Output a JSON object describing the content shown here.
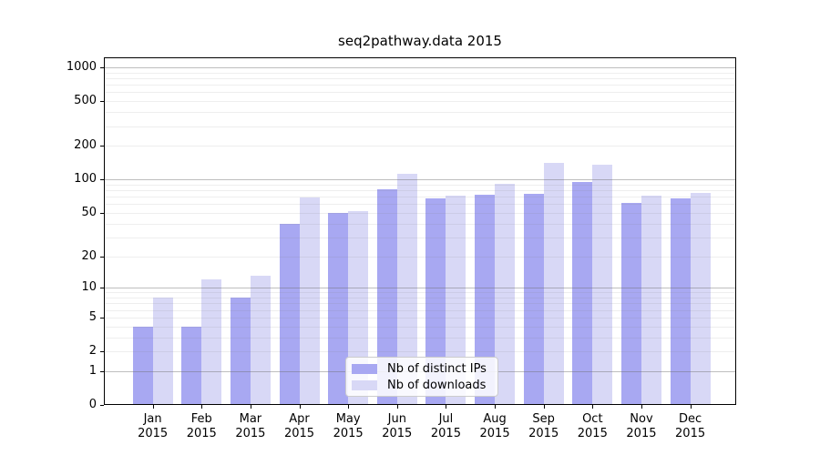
{
  "title": "seq2pathway.data 2015",
  "colors": {
    "ips_bar": "#a8a8f2",
    "downloads_bar": "#d8d8f6",
    "axis": "#000000",
    "grid_major": "#6e6e6e",
    "grid_minor": "#e4e4e4",
    "legend_border": "#cccccc",
    "background": "#ffffff"
  },
  "legend": {
    "entries": [
      {
        "label": "Nb of distinct IPs",
        "color_key": "ips_bar"
      },
      {
        "label": "Nb of downloads",
        "color_key": "downloads_bar"
      }
    ]
  },
  "y_axis": {
    "tick_labels": [
      "1000",
      "500",
      "200",
      "100",
      "50",
      "20",
      "10",
      "5",
      "2",
      "1",
      "0"
    ],
    "tick_values": [
      1000,
      500,
      200,
      100,
      50,
      20,
      10,
      5,
      2,
      1,
      0
    ],
    "scale": "log10(value+1)"
  },
  "x_axis": {
    "months": [
      "Jan",
      "Feb",
      "Mar",
      "Apr",
      "May",
      "Jun",
      "Jul",
      "Aug",
      "Sep",
      "Oct",
      "Nov",
      "Dec"
    ],
    "year": "2015"
  },
  "chart_data": {
    "type": "bar",
    "title": "seq2pathway.data 2015",
    "categories": [
      "Jan 2015",
      "Feb 2015",
      "Mar 2015",
      "Apr 2015",
      "May 2015",
      "Jun 2015",
      "Jul 2015",
      "Aug 2015",
      "Sep 2015",
      "Oct 2015",
      "Nov 2015",
      "Dec 2015"
    ],
    "series": [
      {
        "name": "Nb of distinct IPs",
        "values": [
          4,
          4,
          8,
          40,
          50,
          81,
          67,
          73,
          74,
          95,
          62,
          67
        ]
      },
      {
        "name": "Nb of downloads",
        "values": [
          8,
          12,
          13,
          69,
          52,
          112,
          71,
          92,
          140,
          135,
          72,
          75
        ]
      }
    ],
    "xlabel": "",
    "ylabel": "",
    "yscale": "pseudo-log: position proportional to log10(value+1)",
    "yticks": [
      0,
      1,
      2,
      5,
      10,
      20,
      50,
      100,
      200,
      500,
      1000
    ],
    "ylim": [
      0,
      1230
    ],
    "grid": true,
    "grid_major_at": [
      1,
      10,
      100,
      1000
    ],
    "grid_on_top_of_bars": true,
    "legend_position": "lower center"
  }
}
